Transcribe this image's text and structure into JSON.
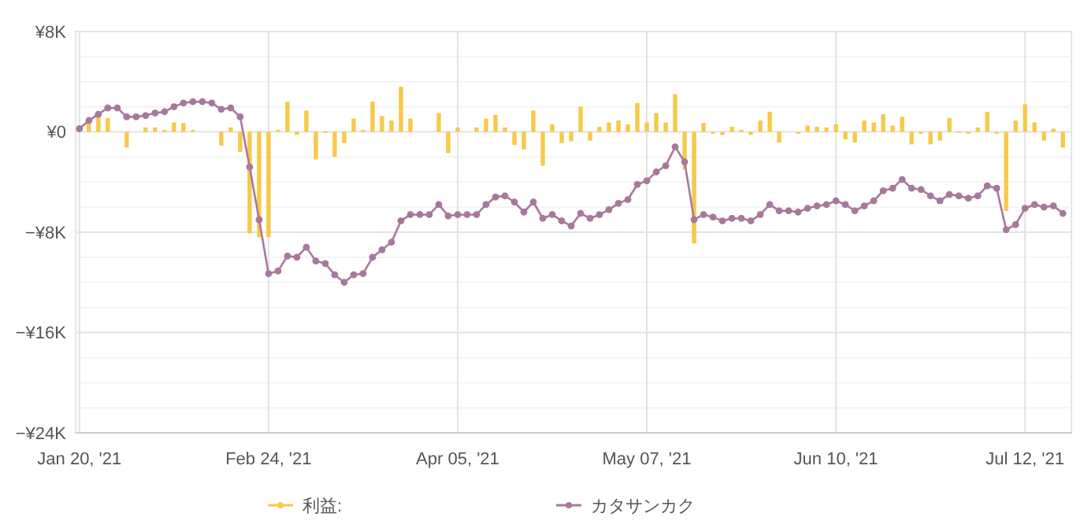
{
  "chart_data": {
    "type": "bar",
    "categories": [
      "Jan 20, '21",
      null,
      null,
      null,
      null,
      null,
      null,
      null,
      null,
      null,
      null,
      null,
      null,
      null,
      null,
      null,
      null,
      null,
      null,
      null,
      "Feb 24, '21",
      null,
      null,
      null,
      null,
      null,
      null,
      null,
      null,
      null,
      null,
      null,
      null,
      null,
      null,
      null,
      null,
      null,
      null,
      null,
      "Apr 05, '21",
      null,
      null,
      null,
      null,
      null,
      null,
      null,
      null,
      null,
      null,
      null,
      null,
      null,
      null,
      null,
      null,
      null,
      null,
      null,
      "May 07, '21",
      null,
      null,
      null,
      null,
      null,
      null,
      null,
      null,
      null,
      null,
      null,
      null,
      null,
      null,
      null,
      null,
      null,
      null,
      null,
      "Jun 10, '21",
      null,
      null,
      null,
      null,
      null,
      null,
      null,
      null,
      null,
      null,
      null,
      null,
      null,
      null,
      null,
      null,
      null,
      null,
      null,
      "Jul 12, '21",
      null,
      null,
      null,
      null
    ],
    "series": [
      {
        "name": "利益:",
        "color": "#f7c948",
        "values": [
          0,
          750,
          1250,
          1100,
          0,
          -1250,
          0,
          350,
          350,
          150,
          750,
          700,
          150,
          0,
          0,
          -1100,
          350,
          -1600,
          -8100,
          -8400,
          -8400,
          150,
          2400,
          -250,
          1700,
          -2200,
          -100,
          -2000,
          -900,
          1050,
          150,
          2400,
          1250,
          900,
          3600,
          1050,
          0,
          0,
          1500,
          -1700,
          350,
          0,
          350,
          1050,
          1350,
          350,
          -1050,
          -1400,
          1700,
          -2700,
          600,
          -900,
          -750,
          2000,
          -700,
          400,
          750,
          900,
          600,
          2300,
          750,
          1500,
          750,
          3000,
          -3000,
          -8900,
          700,
          -150,
          -250,
          400,
          150,
          -250,
          900,
          1600,
          -850,
          0,
          -150,
          500,
          400,
          350,
          600,
          -600,
          -850,
          900,
          750,
          1400,
          500,
          1200,
          -1000,
          -150,
          -1000,
          -700,
          1100,
          -100,
          -150,
          350,
          1600,
          -150,
          -6300,
          900,
          2200,
          750,
          -700,
          250,
          -1250
        ]
      },
      {
        "name": "カタサンカク",
        "type": "line",
        "color": "#a8789c",
        "values": [
          250,
          900,
          1400,
          1900,
          1900,
          1200,
          1200,
          1300,
          1500,
          1600,
          2000,
          2300,
          2400,
          2400,
          2300,
          1800,
          1900,
          1200,
          -2800,
          -7000,
          -11300,
          -11100,
          -9900,
          -10000,
          -9200,
          -10300,
          -10500,
          -11400,
          -12000,
          -11400,
          -11300,
          -10000,
          -9400,
          -8800,
          -7100,
          -6600,
          -6600,
          -6600,
          -5800,
          -6700,
          -6600,
          -6600,
          -6600,
          -5800,
          -5200,
          -5100,
          -5600,
          -6400,
          -5600,
          -6900,
          -6600,
          -7100,
          -7500,
          -6500,
          -6900,
          -6600,
          -6200,
          -5700,
          -5400,
          -4200,
          -3900,
          -3200,
          -2700,
          -1200,
          -2400,
          -7000,
          -6600,
          -6800,
          -7100,
          -6900,
          -6900,
          -7100,
          -6600,
          -5800,
          -6300,
          -6300,
          -6400,
          -6100,
          -5900,
          -5800,
          -5500,
          -5800,
          -6300,
          -5900,
          -5500,
          -4700,
          -4500,
          -3800,
          -4500,
          -4600,
          -5100,
          -5500,
          -5000,
          -5100,
          -5300,
          -5100,
          -4300,
          -4500,
          -7800,
          -7400,
          -6100,
          -5800,
          -6000,
          -5900,
          -6500
        ]
      }
    ],
    "ylim": [
      -24000,
      8000
    ],
    "yticks": [
      {
        "value": 8000,
        "label": "¥8K"
      },
      {
        "value": 6000,
        "label": null
      },
      {
        "value": 4000,
        "label": null
      },
      {
        "value": 2000,
        "label": null
      },
      {
        "value": 0,
        "label": "¥0"
      },
      {
        "value": -2000,
        "label": null
      },
      {
        "value": -4000,
        "label": null
      },
      {
        "value": -6000,
        "label": null
      },
      {
        "value": -8000,
        "label": "−¥8K"
      },
      {
        "value": -10000,
        "label": null
      },
      {
        "value": -12000,
        "label": null
      },
      {
        "value": -14000,
        "label": null
      },
      {
        "value": -16000,
        "label": "−¥16K"
      },
      {
        "value": -18000,
        "label": null
      },
      {
        "value": -20000,
        "label": null
      },
      {
        "value": -22000,
        "label": null
      },
      {
        "value": -24000,
        "label": "−¥24K"
      }
    ],
    "grid": true,
    "legend": "bottom",
    "marker": "circle",
    "line_style": "solid"
  }
}
